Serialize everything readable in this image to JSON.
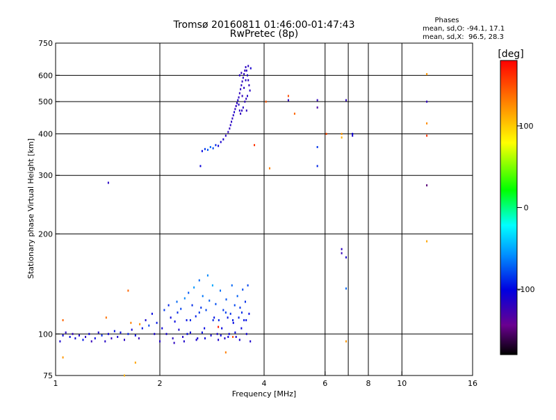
{
  "chart_data": {
    "type": "scatter",
    "title": "Tromsø 20160811 01:46:00-01:47:43",
    "subtitle": "RwPretec (8p)",
    "xlabel": "Frequency [MHz]",
    "ylabel": "Stationary phase Virtual Height [km]",
    "x_scale": "log2",
    "y_scale": "log",
    "xlim": [
      1,
      16
    ],
    "ylim": [
      75,
      750
    ],
    "x_ticks": [
      1,
      2,
      4,
      6,
      8,
      10,
      16
    ],
    "x_tick_labels": [
      "1",
      "2",
      "4",
      "6",
      "8",
      "10",
      "16"
    ],
    "x_gridlines": [
      2,
      4,
      6,
      7,
      8,
      10
    ],
    "y_ticks": [
      75,
      100,
      200,
      300,
      400,
      500,
      600,
      750
    ],
    "y_tick_labels": [
      "75",
      "100",
      "200",
      "300",
      "400",
      "500",
      "600",
      "750"
    ],
    "y_gridlines": [
      100,
      200,
      300,
      400,
      500,
      600
    ],
    "legend_title": "Phases",
    "legend_lines": [
      "mean, sd,O: -94.1, 17.1",
      "mean, sd,X:  96.5, 28.3"
    ],
    "legend_position": "top-right",
    "colorbar": {
      "unit": "[deg]",
      "min": -180,
      "max": 180,
      "ticks": [
        100,
        0,
        -100
      ],
      "tick_labels": [
        "100",
        "0",
        "-100"
      ]
    },
    "series": [
      {
        "values": [
          [
            1.03,
            95,
            -110
          ],
          [
            1.05,
            99,
            -105
          ],
          [
            1.07,
            101,
            -115
          ],
          [
            1.1,
            98,
            -100
          ],
          [
            1.12,
            100,
            -120
          ],
          [
            1.14,
            97,
            -108
          ],
          [
            1.17,
            99,
            -112
          ],
          [
            1.2,
            96,
            -95
          ],
          [
            1.22,
            98,
            -118
          ],
          [
            1.25,
            100,
            -104
          ],
          [
            1.27,
            95,
            -122
          ],
          [
            1.3,
            97,
            -100
          ],
          [
            1.33,
            101,
            -110
          ],
          [
            1.36,
            99,
            -90
          ],
          [
            1.39,
            95,
            -115
          ],
          [
            1.42,
            100,
            -105
          ],
          [
            1.45,
            97,
            -120
          ],
          [
            1.48,
            102,
            -98
          ],
          [
            1.51,
            98,
            -110
          ],
          [
            1.54,
            101,
            -100
          ],
          [
            1.58,
            96,
            -117
          ],
          [
            1.62,
            100,
            -92
          ],
          [
            1.66,
            103,
            -108
          ],
          [
            1.7,
            99,
            -100
          ],
          [
            1.74,
            97,
            -122
          ],
          [
            1.78,
            104,
            -95
          ],
          [
            1.82,
            110,
            -110
          ],
          [
            1.86,
            106,
            -80
          ],
          [
            1.9,
            115,
            -100
          ],
          [
            1.93,
            100,
            -110
          ],
          [
            1.96,
            108,
            -95
          ],
          [
            2.0,
            95,
            -115
          ],
          [
            2.03,
            104,
            -105
          ],
          [
            2.06,
            118,
            -85
          ],
          [
            2.09,
            100,
            -110
          ],
          [
            2.12,
            122,
            -90
          ],
          [
            2.15,
            112,
            -104
          ],
          [
            2.18,
            97,
            -118
          ],
          [
            2.21,
            109,
            -100
          ],
          [
            2.24,
            125,
            -70
          ],
          [
            2.27,
            103,
            -110
          ],
          [
            2.3,
            119,
            -82
          ],
          [
            2.33,
            98,
            -115
          ],
          [
            2.36,
            128,
            -60
          ],
          [
            2.39,
            110,
            -95
          ],
          [
            2.42,
            133,
            -75
          ],
          [
            2.45,
            101,
            -105
          ],
          [
            2.48,
            122,
            -88
          ],
          [
            2.51,
            138,
            -55
          ],
          [
            2.54,
            113,
            -92
          ],
          [
            2.57,
            97,
            -112
          ],
          [
            2.6,
            145,
            -70
          ],
          [
            2.63,
            120,
            -85
          ],
          [
            2.66,
            130,
            -65
          ],
          [
            2.69,
            104,
            -100
          ],
          [
            2.72,
            118,
            -80
          ],
          [
            2.75,
            150,
            -60
          ],
          [
            2.78,
            126,
            -72
          ],
          [
            2.81,
            99,
            -108
          ],
          [
            2.84,
            140,
            -50
          ],
          [
            2.87,
            112,
            -95
          ],
          [
            2.9,
            123,
            -78
          ],
          [
            2.93,
            100,
            -110
          ],
          [
            2.96,
            110,
            -90
          ],
          [
            2.99,
            135,
            -68
          ],
          [
            3.02,
            104,
            -102
          ],
          [
            3.05,
            118,
            -85
          ],
          [
            3.08,
            97,
            -112
          ],
          [
            3.11,
            127,
            -75
          ],
          [
            3.14,
            112,
            -95
          ],
          [
            3.17,
            100,
            -105
          ],
          [
            3.2,
            115,
            -88
          ],
          [
            3.23,
            140,
            -70
          ],
          [
            3.26,
            108,
            -100
          ],
          [
            3.29,
            122,
            -80
          ],
          [
            3.32,
            98,
            -110
          ],
          [
            3.35,
            130,
            -72
          ],
          [
            3.38,
            112,
            -92
          ],
          [
            3.41,
            120,
            -85
          ],
          [
            3.44,
            104,
            -102
          ],
          [
            3.47,
            136,
            -78
          ],
          [
            3.5,
            110,
            -95
          ],
          [
            3.53,
            125,
            -88
          ],
          [
            3.56,
            100,
            -108
          ],
          [
            3.59,
            140,
            -80
          ],
          [
            3.62,
            115,
            -98
          ],
          [
            3.65,
            95,
            -112
          ],
          [
            2.2,
            94,
            -118
          ],
          [
            2.35,
            95,
            -112
          ],
          [
            2.55,
            96,
            -110
          ],
          [
            2.7,
            97,
            -105
          ],
          [
            2.95,
            96,
            -112
          ],
          [
            3.15,
            98,
            -108
          ],
          [
            3.4,
            96,
            -110
          ],
          [
            2.4,
            100,
            -100
          ],
          [
            2.65,
            101,
            -98
          ],
          [
            3.0,
            99,
            -104
          ],
          [
            3.3,
            101,
            -102
          ],
          [
            2.45,
            110,
            -90
          ],
          [
            2.85,
            110,
            -88
          ],
          [
            3.25,
            110,
            -92
          ],
          [
            3.55,
            110,
            -95
          ],
          [
            2.25,
            116,
            -88
          ],
          [
            2.6,
            116,
            -84
          ],
          [
            3.1,
            116,
            -82
          ],
          [
            3.45,
            116,
            -86
          ]
        ]
      },
      {
        "values": [
          [
            2.65,
            355,
            -100
          ],
          [
            2.7,
            360,
            -85
          ],
          [
            2.75,
            358,
            -75
          ],
          [
            2.8,
            365,
            -70
          ],
          [
            2.85,
            362,
            -80
          ],
          [
            2.9,
            370,
            -90
          ],
          [
            2.95,
            368,
            -105
          ],
          [
            3.0,
            378,
            -110
          ],
          [
            3.05,
            385,
            -112
          ],
          [
            3.1,
            395,
            -115
          ],
          [
            3.15,
            405,
            -118
          ],
          [
            3.18,
            415,
            -120
          ],
          [
            3.2,
            425,
            -115
          ],
          [
            3.22,
            435,
            -118
          ],
          [
            3.24,
            445,
            -120
          ],
          [
            3.26,
            455,
            -115
          ],
          [
            3.28,
            465,
            -112
          ],
          [
            3.3,
            475,
            -118
          ],
          [
            3.32,
            485,
            -120
          ],
          [
            3.34,
            495,
            -116
          ],
          [
            3.36,
            505,
            -114
          ],
          [
            3.38,
            515,
            -118
          ],
          [
            3.4,
            530,
            -120
          ],
          [
            3.42,
            545,
            -116
          ],
          [
            3.44,
            560,
            -118
          ],
          [
            3.46,
            575,
            -120
          ],
          [
            3.48,
            590,
            -116
          ],
          [
            3.5,
            605,
            -118
          ],
          [
            3.52,
            620,
            -120
          ],
          [
            3.54,
            635,
            -116
          ],
          [
            3.56,
            620,
            -118
          ],
          [
            3.58,
            600,
            -115
          ],
          [
            3.6,
            580,
            -118
          ],
          [
            3.62,
            560,
            -120
          ],
          [
            3.64,
            540,
            -116
          ],
          [
            3.58,
            520,
            -114
          ],
          [
            3.55,
            510,
            -118
          ],
          [
            3.52,
            500,
            -120
          ],
          [
            3.48,
            480,
            -116
          ],
          [
            3.45,
            470,
            -118
          ],
          [
            3.42,
            460,
            -120
          ],
          [
            3.4,
            470,
            -116
          ],
          [
            3.38,
            490,
            -115
          ],
          [
            3.5,
            550,
            -118
          ],
          [
            3.46,
            520,
            -120
          ],
          [
            3.54,
            580,
            -116
          ],
          [
            3.6,
            640,
            -118
          ],
          [
            3.44,
            610,
            -120
          ],
          [
            3.4,
            600,
            -116
          ],
          [
            3.56,
            470,
            -118
          ],
          [
            3.66,
            630,
            -110
          ],
          [
            2.62,
            320,
            -105
          ]
        ]
      },
      {
        "values": [
          [
            1.42,
            285,
            -115
          ],
          [
            4.05,
            500,
            145
          ],
          [
            4.15,
            315,
            130
          ],
          [
            4.7,
            520,
            150
          ],
          [
            4.7,
            505,
            -120
          ],
          [
            4.9,
            460,
            140
          ],
          [
            5.7,
            505,
            -120
          ],
          [
            5.7,
            480,
            -130
          ],
          [
            5.7,
            365,
            -85
          ],
          [
            5.7,
            320,
            -90
          ],
          [
            6.05,
            400,
            150
          ],
          [
            6.7,
            400,
            120
          ],
          [
            6.7,
            390,
            110
          ],
          [
            6.7,
            180,
            -118
          ],
          [
            6.7,
            175,
            -122
          ],
          [
            6.9,
            505,
            -120
          ],
          [
            6.9,
            170,
            -110
          ],
          [
            6.9,
            137,
            -70
          ],
          [
            6.9,
            95,
            120
          ],
          [
            7.2,
            400,
            -105
          ],
          [
            7.2,
            395,
            -110
          ],
          [
            11.8,
            605,
            120
          ],
          [
            11.8,
            500,
            -120
          ],
          [
            11.8,
            430,
            125
          ],
          [
            11.8,
            395,
            160
          ],
          [
            11.8,
            280,
            -150
          ],
          [
            11.8,
            190,
            115
          ],
          [
            3.75,
            370,
            160
          ],
          [
            1.05,
            110,
            140
          ],
          [
            1.05,
            85,
            120
          ],
          [
            1.4,
            112,
            135
          ],
          [
            1.62,
            135,
            140
          ],
          [
            1.58,
            75,
            110
          ],
          [
            1.7,
            82,
            115
          ],
          [
            2.95,
            105,
            170
          ],
          [
            3.1,
            88,
            130
          ],
          [
            1.75,
            107,
            125
          ],
          [
            1.65,
            108,
            130
          ],
          [
            3.25,
            98,
            150
          ]
        ]
      }
    ]
  }
}
